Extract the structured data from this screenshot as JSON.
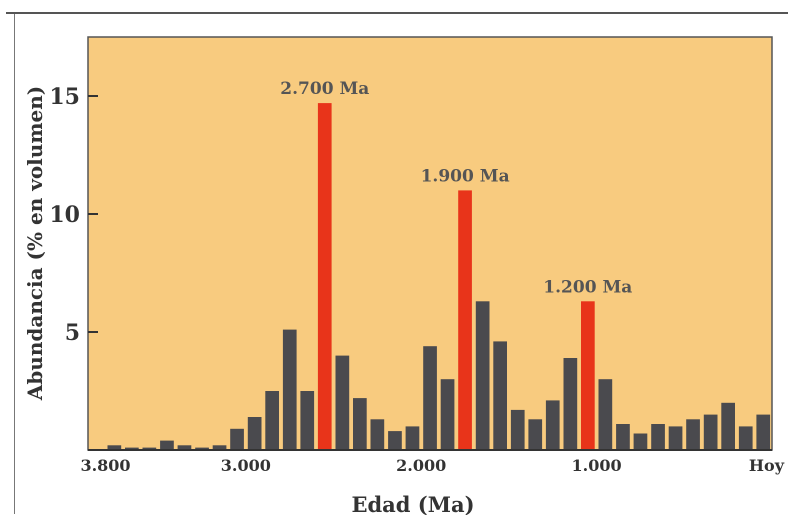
{
  "chart_data": {
    "type": "bar",
    "ylabel": "Abundancia (% en volumen)",
    "xlabel": "Edad (Ma)",
    "x_reversed": true,
    "xlim": [
      3900,
      0
    ],
    "ylim": [
      0,
      17.5
    ],
    "x_ticks": [
      {
        "value": 3800,
        "label": "3.800"
      },
      {
        "value": 3000,
        "label": "3.000"
      },
      {
        "value": 2000,
        "label": "2.000"
      },
      {
        "value": 1000,
        "label": "1.000"
      },
      {
        "value": 0,
        "label": "Hoy"
      }
    ],
    "y_ticks": [
      {
        "value": 5,
        "label": "5"
      },
      {
        "value": 10,
        "label": "10"
      },
      {
        "value": 15,
        "label": "15"
      }
    ],
    "grid": false,
    "background_color": "#F8CB7F",
    "bar_color": "#4A4A4E",
    "peak_color": "#E8341A",
    "bars": [
      {
        "age": 3750,
        "value": 0.2
      },
      {
        "age": 3650,
        "value": 0.1
      },
      {
        "age": 3550,
        "value": 0.1
      },
      {
        "age": 3450,
        "value": 0.4
      },
      {
        "age": 3350,
        "value": 0.2
      },
      {
        "age": 3250,
        "value": 0.1
      },
      {
        "age": 3150,
        "value": 0.2
      },
      {
        "age": 3050,
        "value": 0.9
      },
      {
        "age": 2950,
        "value": 1.4
      },
      {
        "age": 2850,
        "value": 2.5
      },
      {
        "age": 2750,
        "value": 5.1
      },
      {
        "age": 2650,
        "value": 2.5
      },
      {
        "age": 2550,
        "value": 14.7,
        "peak": true
      },
      {
        "age": 2450,
        "value": 4.0
      },
      {
        "age": 2350,
        "value": 2.2
      },
      {
        "age": 2250,
        "value": 1.3
      },
      {
        "age": 2150,
        "value": 0.8
      },
      {
        "age": 2050,
        "value": 1.0
      },
      {
        "age": 1950,
        "value": 4.4
      },
      {
        "age": 1850,
        "value": 3.0
      },
      {
        "age": 1750,
        "value": 11.0,
        "peak": true
      },
      {
        "age": 1650,
        "value": 6.3
      },
      {
        "age": 1550,
        "value": 4.6
      },
      {
        "age": 1450,
        "value": 1.7
      },
      {
        "age": 1350,
        "value": 1.3
      },
      {
        "age": 1250,
        "value": 2.1
      },
      {
        "age": 1150,
        "value": 3.9
      },
      {
        "age": 1050,
        "value": 6.3,
        "peak": true
      },
      {
        "age": 950,
        "value": 3.0
      },
      {
        "age": 850,
        "value": 1.1
      },
      {
        "age": 750,
        "value": 0.7
      },
      {
        "age": 650,
        "value": 1.1
      },
      {
        "age": 550,
        "value": 1.0
      },
      {
        "age": 450,
        "value": 1.3
      },
      {
        "age": 350,
        "value": 1.5
      },
      {
        "age": 250,
        "value": 2.0
      },
      {
        "age": 150,
        "value": 1.0
      },
      {
        "age": 50,
        "value": 1.5
      },
      {
        "age": -50,
        "value": 1.8
      }
    ],
    "annotations": [
      {
        "text": "2.700 Ma",
        "age": 2550,
        "value": 14.7
      },
      {
        "text": "1.900 Ma",
        "age": 1750,
        "value": 11.0
      },
      {
        "text": "1.200 Ma",
        "age": 1050,
        "value": 6.3
      }
    ]
  }
}
